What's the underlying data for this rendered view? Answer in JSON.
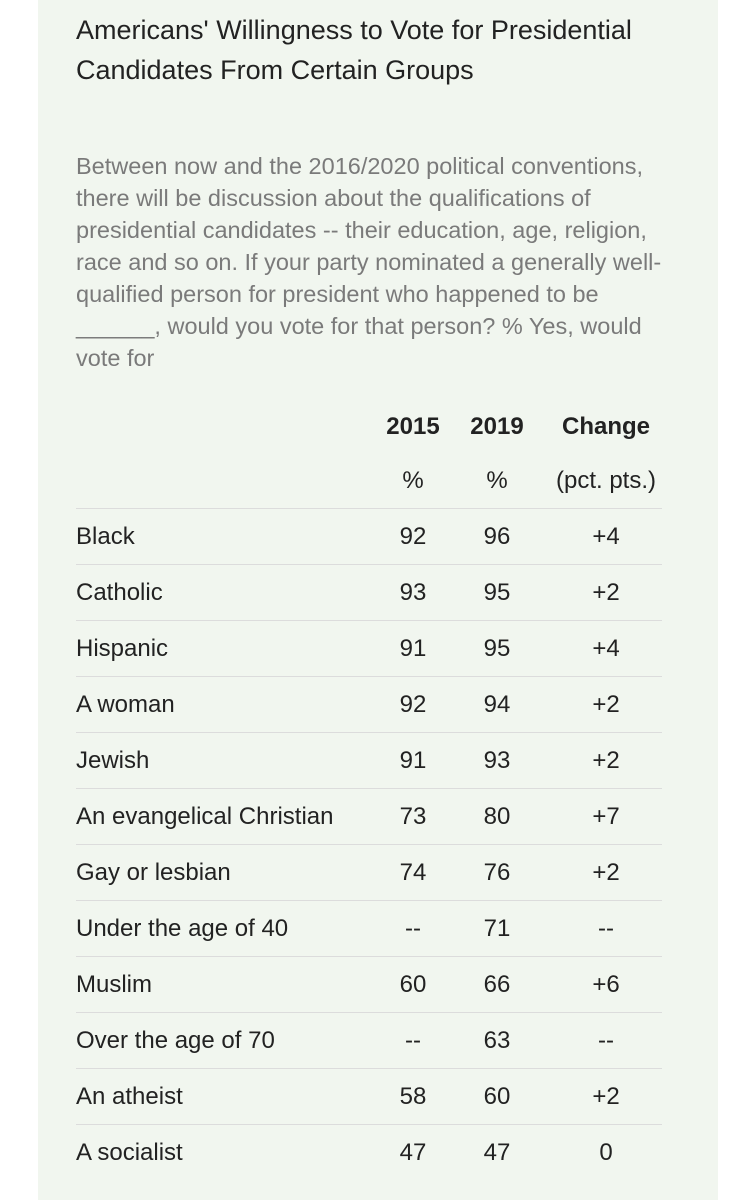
{
  "title": "Americans' Willingness to Vote for Presidential Candidates From Certain Groups",
  "subtitle": "Between now and the 2016/2020 political conventions, there will be discussion about the qualifications of presidential candidates -- their education, age, religion, race and so on. If your party nominated a generally well-qualified person for president who happened to be ______, would you vote for that person? % Yes, would vote for",
  "columns": {
    "col2015": "2015",
    "col2019": "2019",
    "change": "Change",
    "unit2015": "%",
    "unit2019": "%",
    "unitChange": "(pct. pts.)"
  },
  "chart_data": {
    "type": "table",
    "columns": [
      "",
      "2015",
      "2019",
      "Change"
    ],
    "units": [
      "",
      "%",
      "%",
      "(pct. pts.)"
    ],
    "rows": [
      {
        "group": "Black",
        "y2015": "92",
        "y2019": "96",
        "change": "+4"
      },
      {
        "group": "Catholic",
        "y2015": "93",
        "y2019": "95",
        "change": "+2"
      },
      {
        "group": "Hispanic",
        "y2015": "91",
        "y2019": "95",
        "change": "+4"
      },
      {
        "group": "A woman",
        "y2015": "92",
        "y2019": "94",
        "change": "+2"
      },
      {
        "group": "Jewish",
        "y2015": "91",
        "y2019": "93",
        "change": "+2"
      },
      {
        "group": "An evangelical Christian",
        "y2015": "73",
        "y2019": "80",
        "change": "+7"
      },
      {
        "group": "Gay or lesbian",
        "y2015": "74",
        "y2019": "76",
        "change": "+2"
      },
      {
        "group": "Under the age of 40",
        "y2015": "--",
        "y2019": "71",
        "change": "--"
      },
      {
        "group": "Muslim",
        "y2015": "60",
        "y2019": "66",
        "change": "+6"
      },
      {
        "group": "Over the age of 70",
        "y2015": "--",
        "y2019": "63",
        "change": "--"
      },
      {
        "group": "An atheist",
        "y2015": "58",
        "y2019": "60",
        "change": "+2"
      },
      {
        "group": "A socialist",
        "y2015": "47",
        "y2019": "47",
        "change": "0"
      }
    ]
  }
}
